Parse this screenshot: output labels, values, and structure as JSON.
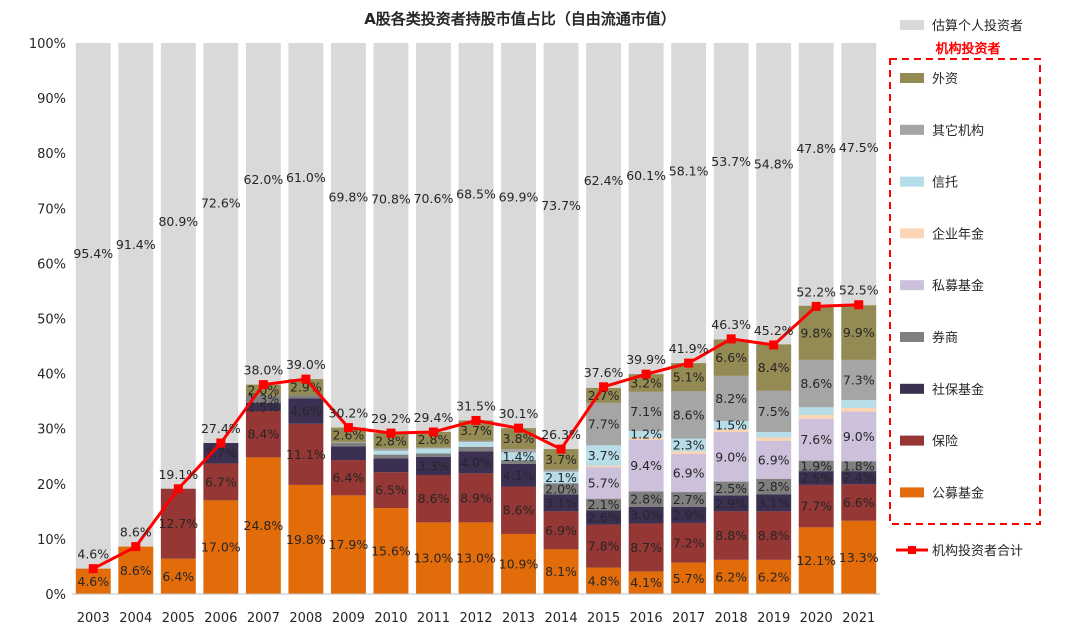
{
  "chart_data": {
    "type": "bar",
    "title": "A股各类投资者持股市值占比（自由流通市值）",
    "categories": [
      "2003",
      "2004",
      "2005",
      "2006",
      "2007",
      "2008",
      "2009",
      "2010",
      "2011",
      "2012",
      "2013",
      "2014",
      "2015",
      "2016",
      "2017",
      "2018",
      "2019",
      "2020",
      "2021"
    ],
    "ylim": [
      0,
      100
    ],
    "yticks": [
      "0%",
      "10%",
      "20%",
      "30%",
      "40%",
      "50%",
      "60%",
      "70%",
      "80%",
      "90%",
      "100%"
    ],
    "institution_group_label": "机构投资者",
    "stacked_series": [
      {
        "key": "fund",
        "name": "公募基金",
        "color": "#E36C0A",
        "values": [
          4.6,
          8.6,
          6.4,
          17.0,
          24.8,
          19.8,
          17.9,
          15.6,
          13.0,
          13.0,
          10.9,
          8.1,
          4.8,
          4.1,
          5.7,
          6.2,
          6.2,
          12.1,
          13.3
        ],
        "labels": [
          "4.6%",
          "8.6%",
          "6.4%",
          "17.0%",
          "24.8%",
          "19.8%",
          "17.9%",
          "15.6%",
          "13.0%",
          "13.0%",
          "10.9%",
          "8.1%",
          "4.8%",
          "4.1%",
          "5.7%",
          "6.2%",
          "6.2%",
          "12.1%",
          "13.3%"
        ]
      },
      {
        "key": "insurance",
        "name": "保险",
        "color": "#953735",
        "values": [
          0,
          0,
          12.7,
          6.7,
          8.4,
          11.1,
          6.4,
          6.5,
          8.6,
          8.9,
          8.6,
          6.9,
          7.8,
          8.7,
          7.2,
          8.8,
          8.8,
          7.7,
          6.6
        ],
        "labels": [
          "",
          "",
          "12.7%",
          "6.7%",
          "8.4%",
          "11.1%",
          "6.4%",
          "6.5%",
          "8.6%",
          "8.9%",
          "8.6%",
          "6.9%",
          "7.8%",
          "8.7%",
          "7.2%",
          "8.8%",
          "8.8%",
          "7.7%",
          "6.6%"
        ]
      },
      {
        "key": "social",
        "name": "社保基金",
        "color": "#3B3052",
        "values": [
          0,
          0,
          0,
          3.7,
          1.5,
          4.6,
          2.5,
          2.5,
          3.3,
          4.0,
          4.1,
          3.1,
          2.6,
          3.0,
          2.9,
          2.9,
          3.1,
          2.5,
          2.4
        ],
        "labels": [
          "",
          "",
          "",
          "3.7%",
          "1.5%",
          "4.6%",
          "",
          "",
          "3.3%",
          "4.0%",
          "4.1%",
          "3.1%",
          "2.6%",
          "3.0%",
          "2.9%",
          "2.9%",
          "3.1%",
          "2.5%",
          "2.4%"
        ]
      },
      {
        "key": "broker",
        "name": "券商",
        "color": "#7F7F7F",
        "values": [
          0,
          0,
          0,
          0,
          1.3,
          0.6,
          0.6,
          0.7,
          0.6,
          0.8,
          0.7,
          2.0,
          2.1,
          2.8,
          2.7,
          2.5,
          2.8,
          1.9,
          1.8
        ],
        "labels": [
          "",
          "",
          "",
          "",
          "1.3%",
          "",
          "",
          "",
          "",
          "",
          "",
          "2.0%",
          "2.1%",
          "2.8%",
          "2.7%",
          "2.5%",
          "2.8%",
          "1.9%",
          "1.8%"
        ]
      },
      {
        "key": "private",
        "name": "私募基金",
        "color": "#CCC0DA",
        "values": [
          0,
          0,
          0,
          0,
          0,
          0,
          0,
          0,
          0,
          0,
          0,
          0,
          5.7,
          9.4,
          6.9,
          9.0,
          6.9,
          7.6,
          9.0
        ],
        "labels": [
          "",
          "",
          "",
          "",
          "",
          "",
          "",
          "",
          "",
          "",
          "",
          "",
          "5.7%",
          "9.4%",
          "6.9%",
          "9.0%",
          "6.9%",
          "7.6%",
          "9.0%"
        ]
      },
      {
        "key": "annuity",
        "name": "企业年金",
        "color": "#FCD5B5",
        "values": [
          0,
          0,
          0,
          0,
          0,
          0,
          0,
          0,
          0,
          0,
          0,
          0,
          0.3,
          0.4,
          0.5,
          0.5,
          0.6,
          0.7,
          0.7
        ],
        "labels": [
          "",
          "",
          "",
          "",
          "",
          "",
          "",
          "",
          "",
          "",
          "",
          "",
          "",
          "",
          "",
          "",
          "",
          "",
          ""
        ]
      },
      {
        "key": "trust",
        "name": "信托",
        "color": "#B7DEE8",
        "values": [
          0,
          0,
          0,
          0,
          0,
          0,
          0,
          0.7,
          0.9,
          0.9,
          1.4,
          2.1,
          3.7,
          1.2,
          2.3,
          1.5,
          1.0,
          1.4,
          1.4
        ],
        "labels": [
          "",
          "",
          "",
          "",
          "",
          "",
          "",
          "",
          "",
          "",
          "1.4%",
          "2.1%",
          "3.7%",
          "1.2%",
          "2.3%",
          "1.5%",
          "",
          "",
          ""
        ]
      },
      {
        "key": "other",
        "name": "其它机构",
        "color": "#A5A5A5",
        "values": [
          0,
          0,
          0,
          0,
          0,
          0,
          0.2,
          0.4,
          0.2,
          0.2,
          0.6,
          0.4,
          7.7,
          7.1,
          8.6,
          8.2,
          7.5,
          8.6,
          7.3
        ],
        "labels": [
          "",
          "",
          "",
          "",
          "",
          "",
          "",
          "",
          "",
          "",
          "",
          "",
          "7.7%",
          "7.1%",
          "8.6%",
          "8.2%",
          "7.5%",
          "8.6%",
          "7.3%"
        ]
      },
      {
        "key": "foreign",
        "name": "外资",
        "color": "#948A54",
        "values": [
          0,
          0,
          0,
          0,
          2.0,
          2.9,
          2.6,
          2.8,
          2.8,
          3.7,
          3.8,
          3.7,
          2.7,
          3.2,
          5.1,
          6.6,
          8.4,
          9.8,
          9.9
        ],
        "labels": [
          "",
          "",
          "",
          "",
          "2.0%",
          "2.9%",
          "2.6%",
          "2.8%",
          "2.8%",
          "3.7%",
          "3.8%",
          "3.7%",
          "2.7%",
          "3.2%",
          "5.1%",
          "6.6%",
          "8.4%",
          "9.8%",
          "9.9%"
        ]
      }
    ],
    "individual_series": {
      "name": "估算个人投资者",
      "color": "#D9D9D9",
      "values": [
        95.4,
        91.4,
        80.9,
        72.6,
        62.0,
        61.0,
        69.8,
        70.8,
        70.6,
        68.5,
        69.9,
        73.7,
        62.4,
        60.1,
        58.1,
        53.7,
        54.8,
        47.8,
        47.5
      ],
      "labels": [
        "95.4%",
        "91.4%",
        "80.9%",
        "72.6%",
        "62.0%",
        "61.0%",
        "69.8%",
        "70.8%",
        "70.6%",
        "68.5%",
        "69.9%",
        "73.7%",
        "62.4%",
        "60.1%",
        "58.1%",
        "53.7%",
        "54.8%",
        "47.8%",
        "47.5%"
      ]
    },
    "total_line": {
      "name": "机构投资者合计",
      "color": "#FF0000",
      "values": [
        4.6,
        8.6,
        19.1,
        27.4,
        38.0,
        39.0,
        30.2,
        29.2,
        29.4,
        31.5,
        30.1,
        26.3,
        37.6,
        39.9,
        41.9,
        46.3,
        45.2,
        52.2,
        52.5
      ],
      "labels": [
        "4.6%",
        "8.6%",
        "19.1%",
        "27.4%",
        "38.0%",
        "39.0%",
        "30.2%",
        "29.2%",
        "29.4%",
        "31.5%",
        "30.1%",
        "26.3%",
        "37.6%",
        "39.9%",
        "41.9%",
        "46.3%",
        "45.2%",
        "52.2%",
        "52.5%"
      ]
    },
    "legend_order": [
      "foreign",
      "other",
      "trust",
      "annuity",
      "private",
      "broker",
      "social",
      "insurance",
      "fund"
    ]
  }
}
